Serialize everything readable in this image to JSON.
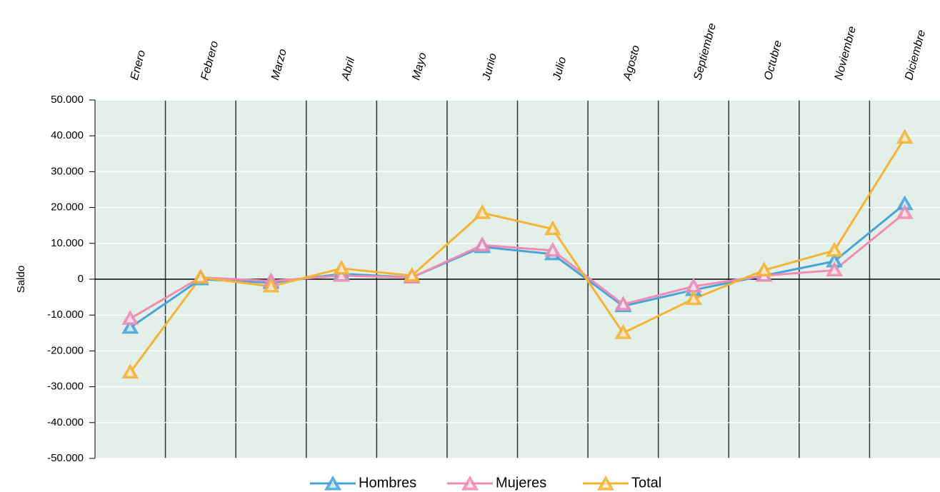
{
  "chart_data": {
    "type": "line",
    "y_label": "Saldo",
    "categories": [
      "Enero",
      "Febrero",
      "Marzo",
      "Abril",
      "Mayo",
      "Junio",
      "Julio",
      "Agosto",
      "Septiembre",
      "Octubre",
      "Noviembre",
      "Diciembre"
    ],
    "series": [
      {
        "name": "Hombres",
        "color": "#4aa3d8",
        "values": [
          -13500,
          0,
          -1000,
          1500,
          500,
          9000,
          7000,
          -7500,
          -3000,
          1000,
          5000,
          21000
        ]
      },
      {
        "name": "Mujeres",
        "color": "#f08cb4",
        "values": [
          -11000,
          500,
          -500,
          1000,
          500,
          9500,
          8000,
          -7000,
          -2000,
          1000,
          2500,
          18500
        ]
      },
      {
        "name": "Total",
        "color": "#f5b335",
        "values": [
          -26000,
          500,
          -2000,
          3000,
          1000,
          18500,
          14000,
          -15000,
          -5500,
          2500,
          8000,
          39500
        ]
      }
    ],
    "ylim": [
      -50000,
      50000
    ],
    "yticks": [
      {
        "value": 50000,
        "label": "50.000"
      },
      {
        "value": 40000,
        "label": "40.000"
      },
      {
        "value": 30000,
        "label": "30.000"
      },
      {
        "value": 20000,
        "label": "20.000"
      },
      {
        "value": 10000,
        "label": "10.000"
      },
      0,
      {
        "value": -10000,
        "label": "-10.000"
      },
      {
        "value": -20000,
        "label": "-20.000"
      },
      {
        "value": -30000,
        "label": "-30.000"
      },
      {
        "value": -40000,
        "label": "-40.000"
      },
      {
        "value": -50000,
        "label": "-50.000"
      }
    ],
    "grid": true,
    "legend": "bottom"
  }
}
